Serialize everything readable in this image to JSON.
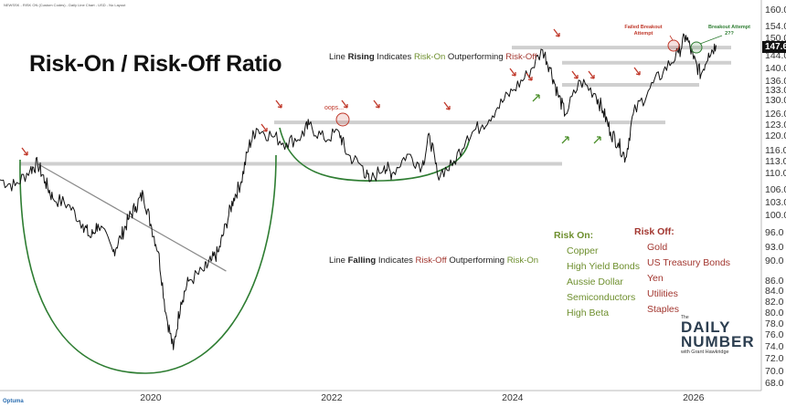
{
  "header": "NEWSSK - RISK ON (Custom Codes) - Daily Line Chart - USD - No Layout",
  "title": "Risk-On / Risk-Off Ratio",
  "notes": {
    "rising": {
      "pre": "Line ",
      "bold": "Rising",
      "mid": " Indicates ",
      "a": "Risk-On",
      "mid2": " Outperforming ",
      "b": "Risk-Off"
    },
    "falling": {
      "pre": "Line ",
      "bold": "Falling",
      "mid": " Indicates ",
      "a": "Risk-Off",
      "mid2": " Outperforming ",
      "b": "Risk-On"
    }
  },
  "risk_on": {
    "heading": "Risk On:",
    "items": [
      "Copper",
      "High Yield Bonds",
      "Aussie Dollar",
      "Semiconductors",
      "High Beta"
    ]
  },
  "risk_off": {
    "heading": "Risk Off:",
    "items": [
      "Gold",
      "US Treasury Bonds",
      "Yen",
      "Utilities",
      "Staples"
    ]
  },
  "annotations": {
    "failed": "Failed Breakout Attempt",
    "breakout": "Breakout Attempt 2??",
    "oops": "oops..."
  },
  "last_value": "147.6",
  "brand": {
    "the": "The",
    "daily": "DAILY",
    "number": "NUMBER",
    "with": "with Grant Hawkridge"
  },
  "optuma": "Optuma",
  "colors": {
    "line": "#111111",
    "arc": "#2e7d32",
    "red_arrow": "#c0392b",
    "green_arrow": "#4a8f2a",
    "level": "#cfcfcf",
    "trend": "#8a8a8a"
  },
  "chart_data": {
    "type": "line",
    "title": "Risk-On / Risk-Off Ratio",
    "yscale": "log",
    "ylim": [
      67.5,
      161
    ],
    "xlim": [
      "2018-05",
      "2026-10"
    ],
    "x_ticks": [
      "2020",
      "2022",
      "2024",
      "2026"
    ],
    "y_ticks": [
      "68.0",
      "70.0",
      "72.0",
      "74.0",
      "76.0",
      "78.0",
      "80.0",
      "82.0",
      "84.0",
      "86.0",
      "90.0",
      "93.0",
      "96.0",
      "100.0",
      "103.0",
      "106.0",
      "110.0",
      "113.0",
      "116.0",
      "120.0",
      "123.0",
      "126.0",
      "130.0",
      "133.0",
      "136.0",
      "140.0",
      "144.0",
      "147.6",
      "150.0",
      "154.0",
      "160.0"
    ],
    "series": [
      {
        "points": [
          [
            "2018-05",
            108.5
          ],
          [
            "2018-07",
            107
          ],
          [
            "2018-09",
            111
          ],
          [
            "2018-10",
            112.5
          ],
          [
            "2018-11",
            108
          ],
          [
            "2018-12",
            104
          ],
          [
            "2019-02",
            102.5
          ],
          [
            "2019-04",
            98
          ],
          [
            "2019-05",
            95
          ],
          [
            "2019-06",
            98
          ],
          [
            "2019-08",
            92
          ],
          [
            "2019-09",
            95
          ],
          [
            "2019-10",
            99
          ],
          [
            "2019-11",
            102
          ],
          [
            "2019-12",
            105
          ],
          [
            "2020-01",
            98
          ],
          [
            "2020-02",
            92
          ],
          [
            "2020-03",
            80
          ],
          [
            "2020-04",
            73.5
          ],
          [
            "2020-05",
            82
          ],
          [
            "2020-06",
            86
          ],
          [
            "2020-08",
            88
          ],
          [
            "2020-09",
            90
          ],
          [
            "2020-10",
            92
          ],
          [
            "2020-11",
            98
          ],
          [
            "2020-12",
            104
          ],
          [
            "2021-01",
            108
          ],
          [
            "2021-02",
            117
          ],
          [
            "2021-03",
            122
          ],
          [
            "2021-05",
            120
          ],
          [
            "2021-07",
            118
          ],
          [
            "2021-09",
            120
          ],
          [
            "2021-10",
            123
          ],
          [
            "2021-12",
            119
          ],
          [
            "2022-02",
            121
          ],
          [
            "2022-03",
            115
          ],
          [
            "2022-05",
            112
          ],
          [
            "2022-06",
            108
          ],
          [
            "2022-08",
            112
          ],
          [
            "2022-09",
            110
          ],
          [
            "2022-11",
            115
          ],
          [
            "2023-01",
            112
          ],
          [
            "2023-02",
            120
          ],
          [
            "2023-03",
            110
          ],
          [
            "2023-05",
            112
          ],
          [
            "2023-07",
            120
          ],
          [
            "2023-09",
            123
          ],
          [
            "2023-11",
            128
          ],
          [
            "2024-01",
            133
          ],
          [
            "2024-03",
            138
          ],
          [
            "2024-05",
            146
          ],
          [
            "2024-06",
            140
          ],
          [
            "2024-07",
            132
          ],
          [
            "2024-08",
            126
          ],
          [
            "2024-10",
            136
          ],
          [
            "2024-12",
            132
          ],
          [
            "2025-01",
            127
          ],
          [
            "2025-02",
            121
          ],
          [
            "2025-03",
            118
          ],
          [
            "2025-04",
            114
          ],
          [
            "2025-05",
            126
          ],
          [
            "2025-07",
            133
          ],
          [
            "2025-09",
            139
          ],
          [
            "2025-11",
            145
          ],
          [
            "2025-12",
            151
          ],
          [
            "2026-01",
            143
          ],
          [
            "2026-02",
            138
          ],
          [
            "2026-03",
            145
          ],
          [
            "2026-04",
            147.6
          ]
        ]
      }
    ],
    "levels": [
      112.5,
      123.7,
      134.8,
      141.8,
      146.8
    ],
    "trendline": [
      [
        "2018-10",
        112.5
      ],
      [
        "2020-11",
        88
      ]
    ]
  }
}
